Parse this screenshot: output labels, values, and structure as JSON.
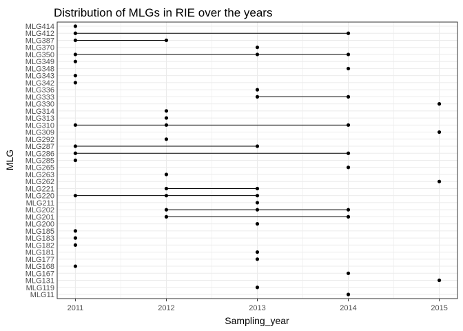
{
  "chart_data": {
    "type": "scatter",
    "title": "Distribution of MLGs in RIE over the years",
    "xlabel": "Sampling_year",
    "ylabel": "MLG",
    "x_ticks": [
      2011,
      2012,
      2013,
      2014,
      2015
    ],
    "xlim": [
      2010.8,
      2015.2
    ],
    "grid": true,
    "colors": {
      "point": "#000000",
      "line": "#000000",
      "grid": "#ebebeb",
      "panel_border": "#333333"
    },
    "categories": [
      "MLG414",
      "MLG412",
      "MLG387",
      "MLG370",
      "MLG350",
      "MLG349",
      "MLG348",
      "MLG343",
      "MLG342",
      "MLG336",
      "MLG333",
      "MLG330",
      "MLG314",
      "MLG313",
      "MLG310",
      "MLG309",
      "MLG292",
      "MLG287",
      "MLG286",
      "MLG285",
      "MLG265",
      "MLG263",
      "MLG262",
      "MLG221",
      "MLG220",
      "MLG211",
      "MLG202",
      "MLG201",
      "MLG200",
      "MLG185",
      "MLG183",
      "MLG182",
      "MLG181",
      "MLG177",
      "MLG168",
      "MLG167",
      "MLG131",
      "MLG119",
      "MLG11"
    ],
    "years": [
      [
        2011
      ],
      [
        2011,
        2014
      ],
      [
        2011,
        2012
      ],
      [
        2013
      ],
      [
        2011,
        2013,
        2014
      ],
      [
        2011
      ],
      [
        2014
      ],
      [
        2011
      ],
      [
        2011
      ],
      [
        2013
      ],
      [
        2013,
        2014
      ],
      [
        2015
      ],
      [
        2012
      ],
      [
        2012
      ],
      [
        2011,
        2012,
        2014
      ],
      [
        2015
      ],
      [
        2012
      ],
      [
        2011,
        2013
      ],
      [
        2011,
        2014
      ],
      [
        2011
      ],
      [
        2014
      ],
      [
        2012
      ],
      [
        2015
      ],
      [
        2012,
        2013
      ],
      [
        2011,
        2012,
        2013
      ],
      [
        2013
      ],
      [
        2012,
        2013,
        2014
      ],
      [
        2012,
        2014
      ],
      [
        2013
      ],
      [
        2011
      ],
      [
        2011
      ],
      [
        2011
      ],
      [
        2013
      ],
      [
        2013
      ],
      [
        2011
      ],
      [
        2014
      ],
      [
        2015
      ],
      [
        2013
      ],
      [
        2014
      ]
    ]
  }
}
